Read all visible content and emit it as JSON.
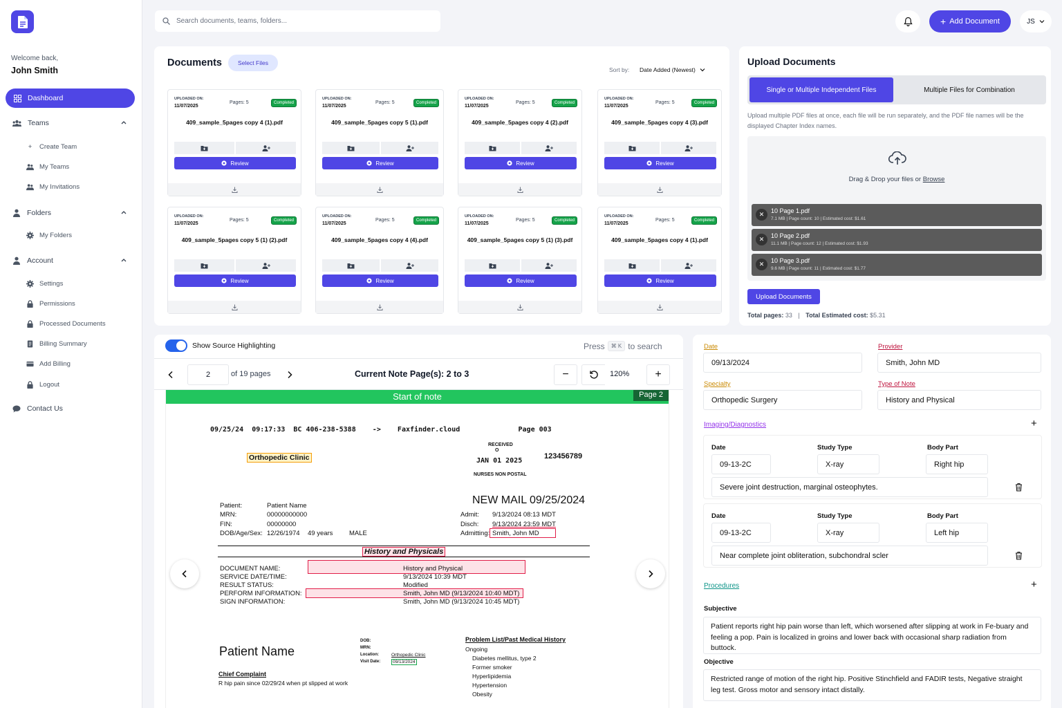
{
  "sidebar": {
    "welcome": "Welcome back,",
    "user_name": "John Smith",
    "dashboard": "Dashboard",
    "teams": "Teams",
    "create_team": "Create Team",
    "my_teams": "My Teams",
    "my_invitations": "My Invitations",
    "folders": "Folders",
    "my_folders": "My Folders",
    "account": "Account",
    "settings": "Settings",
    "permissions": "Permissions",
    "processed_documents": "Processed Documents",
    "billing_summary": "Billing Summary",
    "add_billing": "Add Billing",
    "logout": "Logout",
    "contact_us": "Contact Us"
  },
  "header": {
    "search_placeholder": "Search documents, teams, folders...",
    "add_document": "Add Document",
    "avatar_initials": "JS"
  },
  "documents": {
    "title": "Documents",
    "select_files": "Select Files",
    "sort_label": "Sort by:",
    "sort_value": "Date Added (Newest)",
    "uploaded_label": "UPLOADED ON:",
    "review_label": "Review",
    "cards": [
      {
        "date": "11/07/2025",
        "pages": "Pages: 5",
        "status": "Completed",
        "name": "409_sample_5pages copy 4 (1).pdf"
      },
      {
        "date": "11/07/2025",
        "pages": "Pages: 5",
        "status": "Completed",
        "name": "409_sample_5pages copy 5 (1).pdf"
      },
      {
        "date": "11/07/2025",
        "pages": "Pages: 5",
        "status": "Completed",
        "name": "409_sample_5pages copy 4 (2).pdf"
      },
      {
        "date": "11/07/2025",
        "pages": "Pages: 5",
        "status": "Completed",
        "name": "409_sample_5pages copy 4 (3).pdf"
      },
      {
        "date": "11/07/2025",
        "pages": "Pages: 5",
        "status": "Completed",
        "name": "409_sample_5pages copy 5 (1) (2).pdf"
      },
      {
        "date": "11/07/2025",
        "pages": "Pages: 5",
        "status": "Completed",
        "name": "409_sample_5pages copy 4 (4).pdf"
      },
      {
        "date": "11/07/2025",
        "pages": "Pages: 5",
        "status": "Completed",
        "name": "409_sample_5pages copy 5 (1) (3).pdf"
      },
      {
        "date": "11/07/2025",
        "pages": "Pages: 5",
        "status": "Completed",
        "name": "409_sample_5pages copy 4 (1).pdf"
      }
    ]
  },
  "upload": {
    "title": "Upload Documents",
    "tab_single": "Single or Multiple Independent Files",
    "tab_multi": "Multiple Files for Combination",
    "description": "Upload multiple PDF files at once, each file will be run separately, and the PDF file names will be the displayed Chapter Index names.",
    "drop_text": "Drag & Drop your files or",
    "browse": "Browse",
    "files": [
      {
        "name": "10 Page 1.pdf",
        "meta": "7.1 MB  |  Page count: 10  |  Estimated cost: $1.61"
      },
      {
        "name": "10 Page 2.pdf",
        "meta": "11.1 MB  |  Page count: 12  |  Estimated cost: $1.93"
      },
      {
        "name": "10 Page 3.pdf",
        "meta": "9.6 MB  |  Page count: 11  |  Estimated cost: $1.77"
      }
    ],
    "button": "Upload Documents",
    "total_pages_label": "Total pages:",
    "total_pages": "33",
    "total_cost_label": "Total Estimated cost:",
    "total_cost": "$5.31"
  },
  "viewer": {
    "toggle_label": "Show Source Highlighting",
    "press": "Press",
    "shortcut": "⌘ K",
    "to_search": "to search",
    "page_input": "2",
    "of_pages": "of 19 pages",
    "current_note": "Current Note Page(s): 2 to 3",
    "zoom": "120%",
    "start_of_note": "Start of note",
    "page_badge": "Page 2",
    "doc": {
      "fax_header": "09/25/24  09:17:33  BC 406-238-5388    ->    Faxfinder.cloud              Page 003",
      "clinic": "Orthopedic Clinic",
      "received": "RECEIVED",
      "received_o": "O",
      "jan": "JAN 01 2025",
      "nurses": "NURSES NON POSTAL",
      "number": "123456789",
      "new_mail": "NEW MAIL 09/25/2024",
      "patient_l": "Patient:",
      "patient_v": "Patient Name",
      "mrn_l": "MRN:",
      "mrn_v": "00000000000",
      "fin_l": "FIN:",
      "fin_v": "00000000",
      "dob_l": "DOB/Age/Sex:",
      "dob_v": "12/26/1974",
      "age_v": "49 years",
      "sex_v": "MALE",
      "admit_l": "Admit:",
      "admit_v": "9/13/2024 08:13 MDT",
      "disch_l": "Disch:",
      "disch_v": "9/13/2024 23:59 MDT",
      "admitting_l": "Admitting:",
      "admitting_v": "Smith, John MD",
      "hp_title": "History and Physicals",
      "docname_l": "DOCUMENT NAME:",
      "docname_v": "History and Physical",
      "svc_l": "SERVICE DATE/TIME:",
      "svc_v": "9/13/2024 10:39 MDT",
      "res_l": "RESULT STATUS:",
      "res_v": "Modified",
      "perf_l": "PERFORM INFORMATION:",
      "perf_v": "Smith, John MD (9/13/2024 10:40 MDT)",
      "sign_l": "SIGN INFORMATION:",
      "sign_v": "Smith, John MD (9/13/2024 10:45 MDT)",
      "patient_name_big": "Patient Name",
      "dob2": "DOB:",
      "mrn2": "MRN:",
      "loc2": "Location:",
      "loc2_v": "Orthopedic Clinic",
      "visit2": "Visit Date:",
      "visit2_v": "09/13/2024",
      "problem_title": "Problem List/Past Medical History",
      "ongoing": "Ongoing",
      "problems": [
        "Diabetes mellitus, type 2",
        "Former smoker",
        "Hyperlipidemia",
        "Hypertension",
        "Obesity"
      ],
      "chief": "Chief Complaint",
      "chief_text": "R hip pain since 02/29/24 when pt slipped at work"
    }
  },
  "form": {
    "date_label": "Date",
    "date_value": "09/13/2024",
    "provider_label": "Provider",
    "provider_value": "Smith, John MD",
    "specialty_label": "Specialty",
    "specialty_value": "Orthopedic Surgery",
    "type_label": "Type of Note",
    "type_value": "History and Physical",
    "imaging_label": "Imaging/Diagnostics",
    "col_date": "Date",
    "col_study": "Study Type",
    "col_body": "Body Part",
    "imaging": [
      {
        "date": "09-13-2C",
        "study": "X-ray",
        "body": "Right hip",
        "finding": "Severe joint destruction, marginal osteophytes."
      },
      {
        "date": "09-13-2C",
        "study": "X-ray",
        "body": "Left hip",
        "finding": "Near complete joint obliteration, subchondral scler"
      }
    ],
    "procedures_label": "Procedures",
    "subjective_label": "Subjective",
    "subjective_text": "Patient reports right hip pain worse than left, which worsened after slipping at work in Fe-buary and feeling a pop. Pain is localized in groins and lower back with occasional sharp radiation from buttock.",
    "objective_label": "Objective",
    "objective_text": "Restricted range of motion of the right hip. Positive Stinchfield and FADIR tests, Negative straight leg test. Gross motor and sensory intact distally."
  }
}
